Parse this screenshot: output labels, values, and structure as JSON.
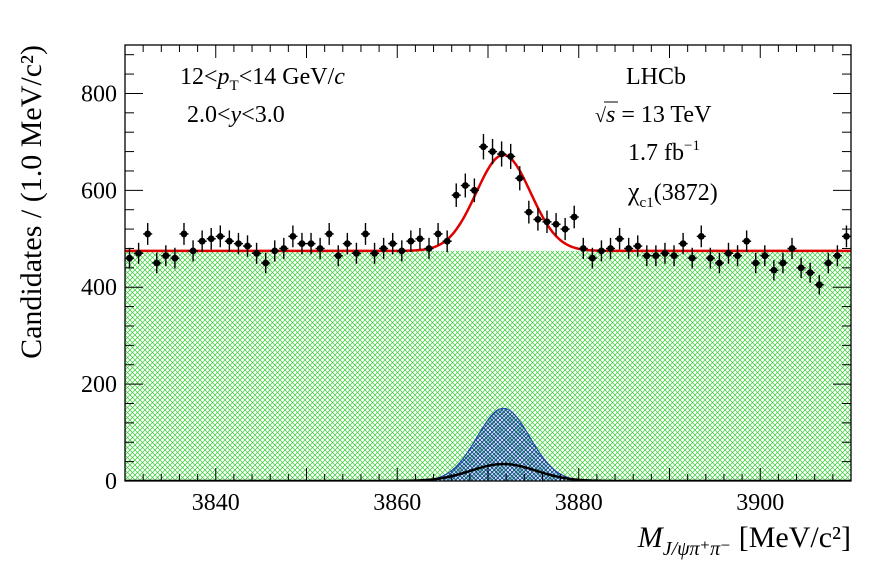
{
  "chart_data": {
    "type": "scatter",
    "title": "",
    "xlabel_main": "M",
    "xlabel_sub": "J/ψπ⁺π⁻",
    "xlabel_unit": "[MeV/c²]",
    "ylabel": "Candidates / (1.0 MeV/c²)",
    "xlim": [
      3830,
      3910
    ],
    "ylim": [
      0,
      900
    ],
    "xticks": [
      3840,
      3860,
      3880,
      3900
    ],
    "yticks": [
      0,
      200,
      400,
      600,
      800
    ],
    "annotations": {
      "pt_cut_a": "12<",
      "pt_p": "p",
      "pt_sub": "T",
      "pt_cut_b": "<14 GeV/",
      "pt_c": "c",
      "y_cut_a": "2.0<",
      "y_var": "y",
      "y_cut_b": "<3.0",
      "experiment": "LHCb",
      "sqrt": "√",
      "energy_s": "s",
      "energy_val": " = 13 TeV",
      "lumi": "1.7 fb",
      "lumi_exp": "−1",
      "particle": "χ",
      "particle_sub": "c1",
      "particle_mass": "(3872)"
    },
    "background_level": 475,
    "signal": {
      "name": "χc1(3872) signal",
      "mean": 3871.7,
      "sigma": 2.9,
      "amplitude": 150,
      "color": "#1a3fb0"
    },
    "component2": {
      "name": "narrow component",
      "mean": 3871.7,
      "sigma": 3.6,
      "amplitude": 35,
      "color": "#000000"
    },
    "fit": {
      "name": "total fit",
      "mean": 3871.7,
      "sigma": 3.0,
      "amplitude": 198,
      "color": "#e00000"
    },
    "background_color": "#33cc33",
    "series": [
      {
        "name": "data",
        "x": [
          3830.5,
          3831.5,
          3832.5,
          3833.5,
          3834.5,
          3835.5,
          3836.5,
          3837.5,
          3838.5,
          3839.5,
          3840.5,
          3841.5,
          3842.5,
          3843.5,
          3844.5,
          3845.5,
          3846.5,
          3847.5,
          3848.5,
          3849.5,
          3850.5,
          3851.5,
          3852.5,
          3853.5,
          3854.5,
          3855.5,
          3856.5,
          3857.5,
          3858.5,
          3859.5,
          3860.5,
          3861.5,
          3862.5,
          3863.5,
          3864.5,
          3865.5,
          3866.5,
          3867.5,
          3868.5,
          3869.5,
          3870.5,
          3871.5,
          3872.5,
          3873.5,
          3874.5,
          3875.5,
          3876.5,
          3877.5,
          3878.5,
          3879.5,
          3880.5,
          3881.5,
          3882.5,
          3883.5,
          3884.5,
          3885.5,
          3886.5,
          3887.5,
          3888.5,
          3889.5,
          3890.5,
          3891.5,
          3892.5,
          3893.5,
          3894.5,
          3895.5,
          3896.5,
          3897.5,
          3898.5,
          3899.5,
          3900.5,
          3901.5,
          3902.5,
          3903.5,
          3904.5,
          3905.5,
          3906.5,
          3907.5,
          3908.5,
          3909.5
        ],
        "y": [
          460,
          470,
          510,
          450,
          465,
          460,
          510,
          475,
          495,
          500,
          505,
          495,
          490,
          485,
          470,
          450,
          475,
          480,
          505,
          490,
          490,
          480,
          510,
          465,
          490,
          470,
          510,
          470,
          480,
          490,
          475,
          495,
          500,
          480,
          510,
          495,
          590,
          610,
          600,
          690,
          680,
          675,
          670,
          625,
          555,
          540,
          535,
          530,
          520,
          545,
          480,
          460,
          475,
          480,
          500,
          480,
          485,
          465,
          465,
          470,
          465,
          490,
          460,
          505,
          460,
          450,
          470,
          465,
          495,
          450,
          465,
          435,
          450,
          480,
          440,
          430,
          405,
          450,
          465,
          505
        ]
      }
    ]
  }
}
